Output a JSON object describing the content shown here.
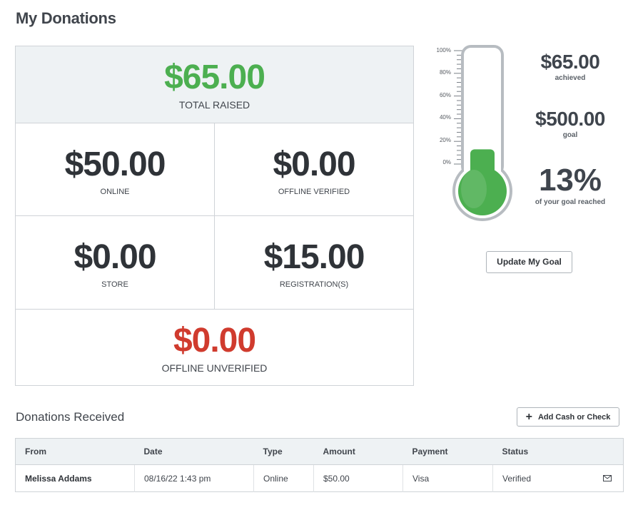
{
  "page": {
    "title": "My Donations"
  },
  "totals": {
    "total_raised": {
      "amount": "$65.00",
      "label": "TOTAL RAISED"
    },
    "online": {
      "amount": "$50.00",
      "label": "ONLINE"
    },
    "offline_verified": {
      "amount": "$0.00",
      "label": "OFFLINE VERIFIED"
    },
    "store": {
      "amount": "$0.00",
      "label": "STORE"
    },
    "registrations": {
      "amount": "$15.00",
      "label": "REGISTRATION(S)"
    },
    "offline_unverified": {
      "amount": "$0.00",
      "label": "OFFLINE UNVERIFIED"
    }
  },
  "thermometer": {
    "ticks": [
      "100%",
      "80%",
      "60%",
      "40%",
      "20%",
      "0%"
    ],
    "fill_fraction": 0.13,
    "fill_color": "#4caf50"
  },
  "goal": {
    "achieved_amount": "$65.00",
    "achieved_label": "achieved",
    "goal_amount": "$500.00",
    "goal_label": "goal",
    "percent": "13%",
    "percent_label": "of your goal reached",
    "update_button": "Update My Goal"
  },
  "donations": {
    "section_title": "Donations Received",
    "add_button": "Add Cash or Check",
    "columns": [
      "From",
      "Date",
      "Type",
      "Amount",
      "Payment",
      "Status"
    ],
    "rows": [
      {
        "from": "Melissa Addams",
        "date": "08/16/22 1:43 pm",
        "type": "Online",
        "amount": "$50.00",
        "payment": "Visa",
        "status": "Verified"
      }
    ]
  },
  "colors": {
    "positive": "#4caf50",
    "negative": "#d03b2e",
    "text_dark": "#2f3338"
  }
}
